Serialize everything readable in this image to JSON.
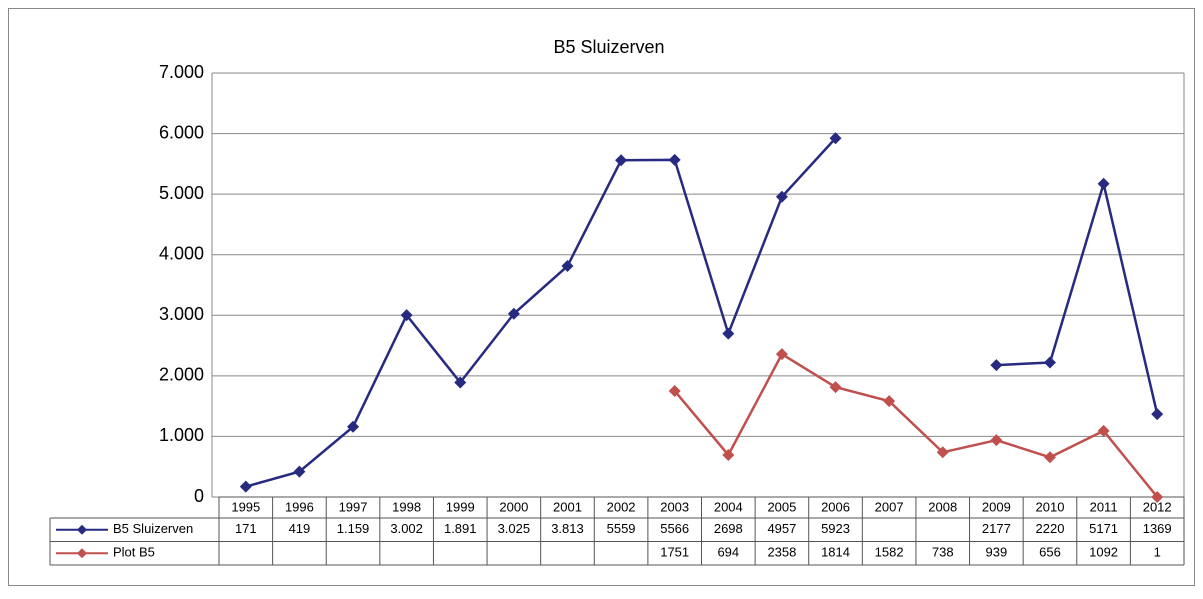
{
  "chart_data": {
    "type": "line",
    "title": "B5 Sluizerven",
    "categories": [
      "1995",
      "1996",
      "1997",
      "1998",
      "1999",
      "2000",
      "2001",
      "2002",
      "2003",
      "2004",
      "2005",
      "2006",
      "2007",
      "2008",
      "2009",
      "2010",
      "2011",
      "2012"
    ],
    "series": [
      {
        "name": "B5 Sluizerven",
        "color": "#262b80",
        "values": [
          171,
          419,
          1159,
          3002,
          1891,
          3025,
          3813,
          5559,
          5566,
          2698,
          4957,
          5923,
          null,
          null,
          2177,
          2220,
          5171,
          1369
        ],
        "value_labels": [
          "171",
          "419",
          "1.159",
          "3.002",
          "1.891",
          "3.025",
          "3.813",
          "5559",
          "5566",
          "2698",
          "4957",
          "5923",
          null,
          null,
          "2177",
          "2220",
          "5171",
          "1369"
        ]
      },
      {
        "name": "Plot B5",
        "color": "#c0504d",
        "values": [
          null,
          null,
          null,
          null,
          null,
          null,
          null,
          null,
          1751,
          694,
          2358,
          1814,
          1582,
          738,
          939,
          656,
          1092,
          1
        ]
      }
    ],
    "ylim": [
      0,
      7000
    ],
    "yticks": [
      0,
      {
        "value": 1000,
        "label": "1.000"
      },
      {
        "value": 2000,
        "label": "2.000"
      },
      {
        "value": 3000,
        "label": "3.000"
      },
      {
        "value": 4000,
        "label": "4.000"
      },
      {
        "value": 5000,
        "label": "5.000"
      },
      {
        "value": 6000,
        "label": "6.000"
      },
      {
        "value": 7000,
        "label": "7.000"
      }
    ],
    "grid": true
  }
}
